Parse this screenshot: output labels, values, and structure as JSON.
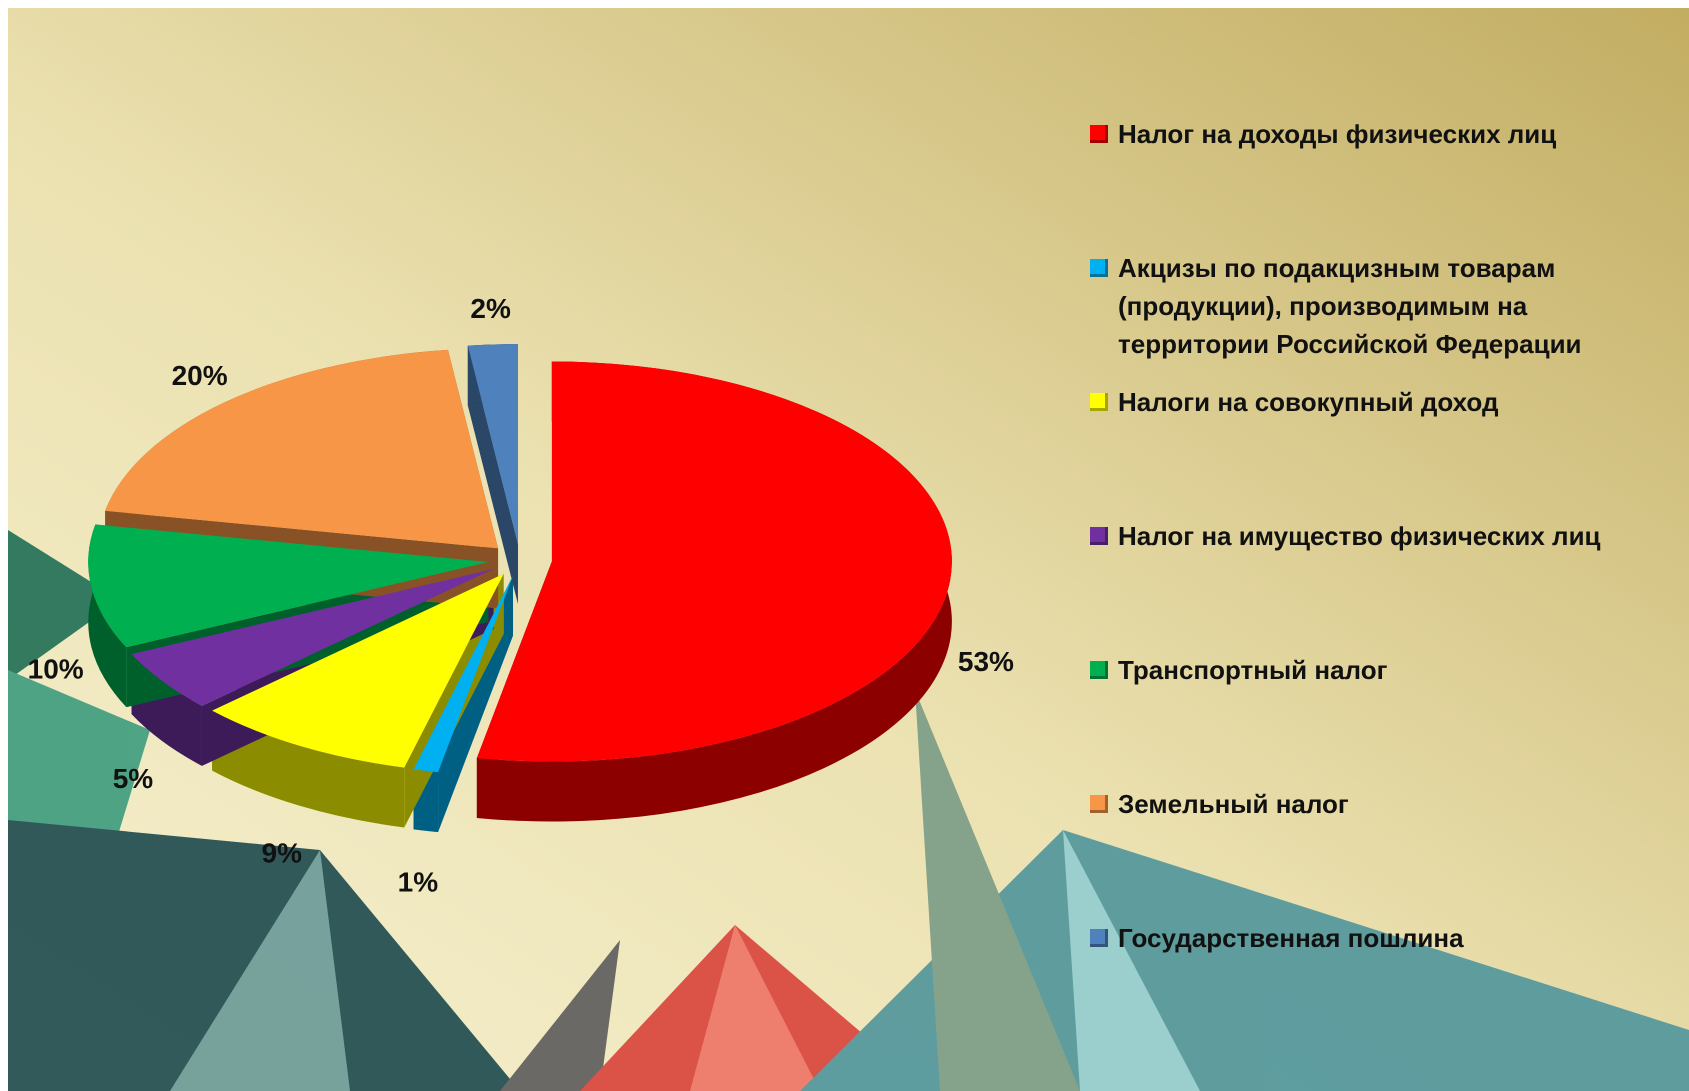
{
  "chart_data": {
    "type": "pie",
    "categories": [
      "Налог на доходы физических лиц",
      "Акцизы по подакцизным товарам (продукции), производимым на территории Российской Федерации",
      "Налоги на совокупный доход",
      "Налог на имущество физических лиц",
      "Транспортный налог",
      "Земельный налог",
      "Государственная пошлина"
    ],
    "values": [
      53,
      1,
      9,
      5,
      10,
      20,
      2
    ],
    "value_labels": [
      "53%",
      "1%",
      "9%",
      "5%",
      "10%",
      "20%",
      "2%"
    ],
    "colors": [
      "#ff0000",
      "#00b0f0",
      "#ffff00",
      "#7030a0",
      "#00b050",
      "#f79646",
      "#4f81bd"
    ],
    "legend": "right"
  }
}
